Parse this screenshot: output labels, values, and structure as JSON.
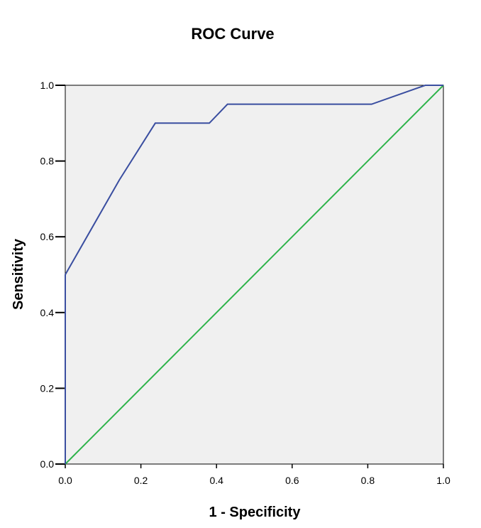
{
  "chart_data": {
    "type": "line",
    "title": "ROC Curve",
    "xlabel": "1 - Specificity",
    "ylabel": "Sensitivity",
    "xlim": [
      0.0,
      1.0
    ],
    "ylim": [
      0.0,
      1.0
    ],
    "x_ticks": [
      "0.0",
      "0.2",
      "0.4",
      "0.6",
      "0.8",
      "1.0"
    ],
    "y_ticks": [
      "0.0",
      "0.2",
      "0.4",
      "0.6",
      "0.8",
      "1.0"
    ],
    "grid": false,
    "background_color": "#f0f0f0",
    "series": [
      {
        "color": "#3a4ea0",
        "x": [
          0.0,
          0.0,
          0.143,
          0.238,
          0.381,
          0.429,
          0.81,
          0.952,
          1.0
        ],
        "y": [
          0.0,
          0.5,
          0.75,
          0.9,
          0.9,
          0.95,
          0.95,
          1.0,
          1.0
        ]
      },
      {
        "color": "#2db34a",
        "x": [
          0.0,
          1.0
        ],
        "y": [
          0.0,
          1.0
        ]
      }
    ]
  }
}
